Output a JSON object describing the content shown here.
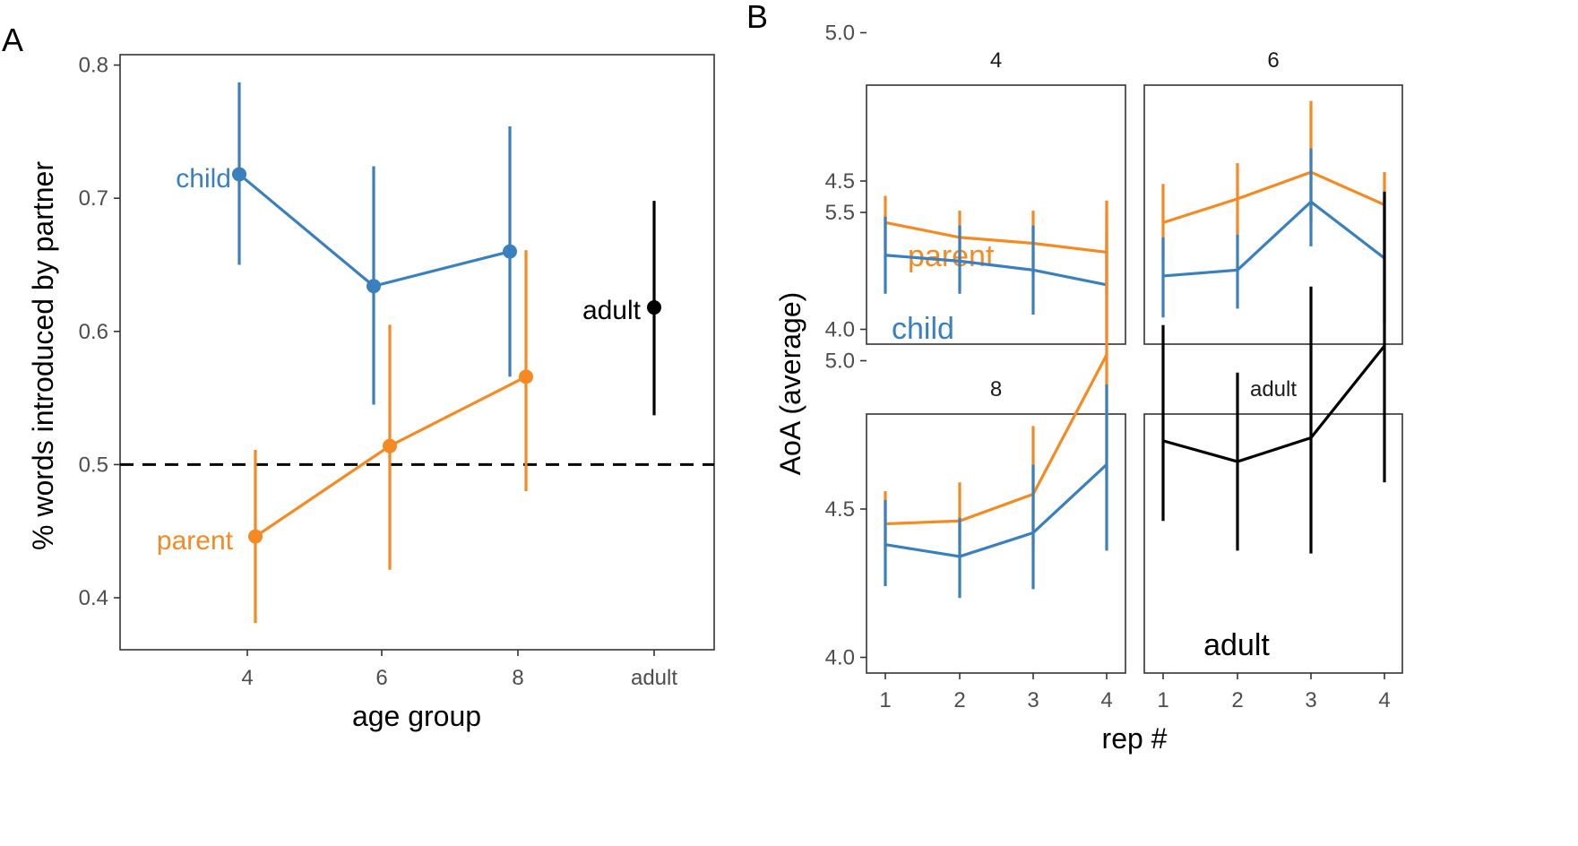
{
  "colors": {
    "child": "#3a7fbe",
    "parent": "#f58a23",
    "adult": "#000000",
    "frame": "#333333",
    "tick_text": "#4d4d4d",
    "axis_title": "#000000"
  },
  "panel_a": {
    "tag": "A",
    "xlabel": "age group",
    "ylabel": "% words introduced by partner",
    "x_ticks": [
      "4",
      "6",
      "8",
      "adult"
    ],
    "y_ticks": [
      0.4,
      0.5,
      0.6,
      0.7,
      0.8
    ],
    "y_tick_labels": [
      "0.4",
      "0.5",
      "0.6",
      "0.7",
      "0.8"
    ],
    "labels": {
      "child": "child",
      "parent": "parent",
      "adult": "adult"
    }
  },
  "panel_b": {
    "tag": "B",
    "xlabel": "rep #",
    "ylabel": "AoA (average)",
    "x_ticks": [
      1,
      2,
      3,
      4
    ],
    "x_tick_labels": [
      "1",
      "2",
      "3",
      "4"
    ],
    "y_ticks": [
      4.0,
      4.5,
      5.0,
      5.5
    ],
    "y_tick_labels": [
      "4.0",
      "4.5",
      "5.0",
      "5.5"
    ],
    "labels": {
      "parent": "parent",
      "child": "child",
      "adult": "adult"
    }
  },
  "chart_data": [
    {
      "type": "line",
      "panel": "A",
      "xlabel": "age group",
      "ylabel": "% words introduced by partner",
      "categories": [
        "4",
        "6",
        "8",
        "adult"
      ],
      "ylim": [
        0.355,
        0.8
      ],
      "reference_line": {
        "y": 0.5,
        "style": "dashed"
      },
      "grid": false,
      "series": [
        {
          "name": "child",
          "color": "#3a7fbe",
          "points": [
            {
              "x": "4",
              "y": 0.718,
              "lo": 0.65,
              "hi": 0.787
            },
            {
              "x": "6",
              "y": 0.634,
              "lo": 0.545,
              "hi": 0.724
            },
            {
              "x": "8",
              "y": 0.66,
              "lo": 0.566,
              "hi": 0.754
            }
          ]
        },
        {
          "name": "parent",
          "color": "#f58a23",
          "points": [
            {
              "x": "4",
              "y": 0.446,
              "lo": 0.381,
              "hi": 0.511
            },
            {
              "x": "6",
              "y": 0.514,
              "lo": 0.421,
              "hi": 0.605
            },
            {
              "x": "8",
              "y": 0.566,
              "lo": 0.48,
              "hi": 0.661
            }
          ]
        },
        {
          "name": "adult",
          "color": "#000000",
          "points": [
            {
              "x": "adult",
              "y": 0.618,
              "lo": 0.537,
              "hi": 0.698
            }
          ]
        }
      ]
    },
    {
      "type": "line",
      "panel": "B",
      "xlabel": "rep #",
      "ylabel": "AoA (average)",
      "x": [
        1,
        2,
        3,
        4
      ],
      "ylim": [
        3.9,
        5.7
      ],
      "grid": false,
      "facets": [
        {
          "title": "4",
          "series": [
            {
              "name": "parent",
              "color": "#f58a23",
              "values": [
                4.36,
                4.31,
                4.29,
                4.26
              ],
              "lo": [
                4.27,
                4.22,
                4.18,
                4.12
              ],
              "hi": [
                4.45,
                4.4,
                4.4,
                4.4
              ]
            },
            {
              "name": "child",
              "color": "#3a7fbe",
              "values": [
                4.25,
                4.23,
                4.2,
                4.15
              ],
              "lo": [
                4.12,
                4.12,
                4.05,
                3.97
              ],
              "hi": [
                4.38,
                4.35,
                4.35,
                4.33
              ]
            }
          ]
        },
        {
          "title": "6",
          "series": [
            {
              "name": "parent",
              "color": "#f58a23",
              "values": [
                4.36,
                4.44,
                4.53,
                4.42
              ],
              "lo": [
                4.23,
                4.32,
                4.36,
                4.3
              ],
              "hi": [
                4.49,
                4.56,
                4.77,
                4.53
              ]
            },
            {
              "name": "child",
              "color": "#3a7fbe",
              "values": [
                4.18,
                4.2,
                4.43,
                4.24
              ],
              "lo": [
                4.04,
                4.07,
                4.28,
                4.02
              ],
              "hi": [
                4.31,
                4.32,
                4.61,
                4.44
              ]
            }
          ]
        },
        {
          "title": "8",
          "series": [
            {
              "name": "parent",
              "color": "#f58a23",
              "values": [
                4.45,
                4.46,
                4.55,
                5.02
              ],
              "lo": [
                4.36,
                4.38,
                4.36,
                4.6
              ],
              "hi": [
                4.56,
                4.59,
                4.78,
                5.54
              ]
            },
            {
              "name": "child",
              "color": "#3a7fbe",
              "values": [
                4.38,
                4.34,
                4.42,
                4.65
              ],
              "lo": [
                4.24,
                4.2,
                4.23,
                4.36
              ],
              "hi": [
                4.53,
                4.47,
                4.65,
                4.92
              ]
            }
          ]
        },
        {
          "title": "adult",
          "series": [
            {
              "name": "adult",
              "color": "#000000",
              "values": [
                4.73,
                4.66,
                4.74,
                5.05
              ],
              "lo": [
                4.46,
                4.36,
                4.35,
                4.59
              ],
              "hi": [
                5.12,
                4.96,
                5.25,
                5.57
              ]
            }
          ]
        }
      ]
    }
  ]
}
